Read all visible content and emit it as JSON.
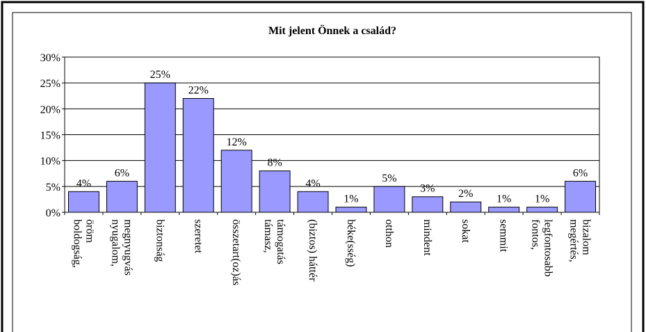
{
  "chart_data": {
    "type": "bar",
    "title": "Mit jelent Önnek a család?",
    "categories": [
      [
        "boldogság,",
        "öröm"
      ],
      [
        "nyugalom,",
        "megnyugvás"
      ],
      [
        "biztonság"
      ],
      [
        "szeretet"
      ],
      [
        "összetart(oz)ás"
      ],
      [
        "támasz,",
        "támogatás"
      ],
      [
        "(biztos) háttér"
      ],
      [
        "béke(sség)"
      ],
      [
        "otthon"
      ],
      [
        "mindent"
      ],
      [
        "sokat"
      ],
      [
        "semmit"
      ],
      [
        "fontos,",
        "legfontosabb"
      ],
      [
        "megértés,",
        "bizalom"
      ]
    ],
    "values": [
      4,
      6,
      25,
      22,
      12,
      8,
      4,
      1,
      5,
      3,
      2,
      1,
      1,
      6
    ],
    "value_labels": [
      "4%",
      "6%",
      "25%",
      "22%",
      "12%",
      "8%",
      "4%",
      "1%",
      "5%",
      "3%",
      "2%",
      "1%",
      "1%",
      "6%"
    ],
    "color": "#9999ff",
    "ylim": [
      0,
      30
    ],
    "yticks": [
      {
        "value": 0,
        "label": "0%"
      },
      {
        "value": 5,
        "label": "5%"
      },
      {
        "value": 10,
        "label": "10%"
      },
      {
        "value": 15,
        "label": "15%"
      },
      {
        "value": 20,
        "label": "20%"
      },
      {
        "value": 25,
        "label": "25%"
      },
      {
        "value": 30,
        "label": "30%"
      }
    ],
    "grid": true
  }
}
